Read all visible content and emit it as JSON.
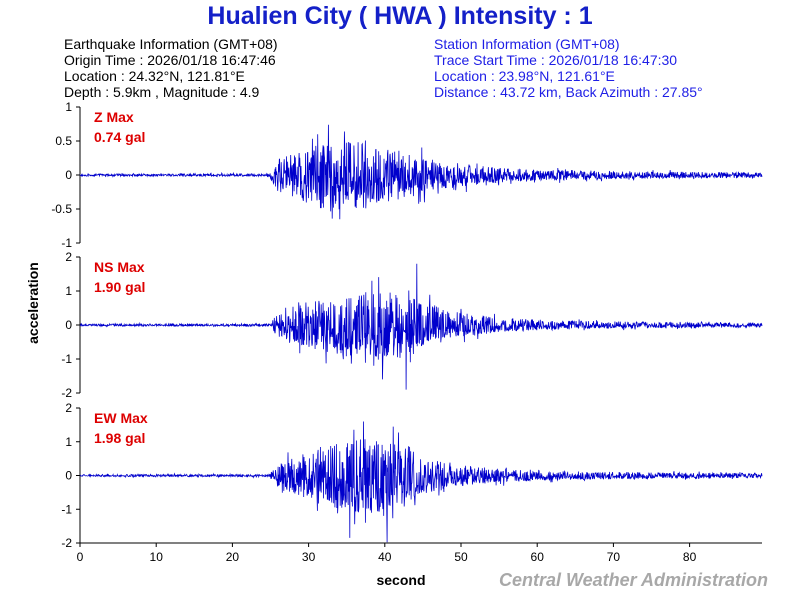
{
  "title": "Hualien City ( HWA ) Intensity : 1",
  "earthquake_info": {
    "heading": "Earthquake Information  (GMT+08)",
    "origin_time": "Origin Time : 2026/01/18 16:47:46",
    "location": "Location : 24.32°N, 121.81°E",
    "depth_magnitude": "Depth : 5.9km , Magnitude : 4.9"
  },
  "station_info": {
    "heading": "Station Information  (GMT+08)",
    "trace_start": "Trace Start Time : 2026/01/18 16:47:30",
    "location": "Location : 23.98°N, 121.61°E",
    "distance": "Distance : 43.72 km, Back Azimuth : 27.85°"
  },
  "credit": "Central Weather Administration",
  "colors": {
    "title": "#1420c8",
    "station_text": "#1e1ee6",
    "trace": "#0000cc",
    "max_label": "#dd0000",
    "credit": "#a8a8a8"
  },
  "chart_data": [
    {
      "type": "line",
      "component": "Z",
      "max_label": "Z Max",
      "max_value": "0.74 gal",
      "ylim": [
        -1,
        1
      ],
      "yticks": [
        -1,
        -0.5,
        0,
        0.5,
        1
      ],
      "envelope": {
        "x": [
          0,
          24.8,
          26,
          30,
          33,
          37,
          42,
          48,
          56,
          65,
          75,
          89.5
        ],
        "amp": [
          0.015,
          0.02,
          0.25,
          0.42,
          0.55,
          0.5,
          0.36,
          0.2,
          0.1,
          0.07,
          0.05,
          0.04
        ]
      },
      "peaks": [
        {
          "x": 32.6,
          "y": 0.74
        },
        {
          "x": 34.1,
          "y": -0.65
        },
        {
          "x": 31.2,
          "y": 0.6
        }
      ]
    },
    {
      "type": "line",
      "component": "NS",
      "max_label": "NS Max",
      "max_value": "1.90 gal",
      "ylim": [
        -2,
        2
      ],
      "yticks": [
        -2,
        -1,
        0,
        1,
        2
      ],
      "envelope": {
        "x": [
          0,
          24.8,
          26,
          30,
          35,
          40,
          44,
          48,
          55,
          65,
          75,
          89.5
        ],
        "amp": [
          0.03,
          0.04,
          0.35,
          0.7,
          0.9,
          1.05,
          0.85,
          0.45,
          0.2,
          0.12,
          0.09,
          0.07
        ]
      },
      "peaks": [
        {
          "x": 42.8,
          "y": -1.9
        },
        {
          "x": 44.2,
          "y": 1.8
        },
        {
          "x": 39.7,
          "y": -1.6
        },
        {
          "x": 38.3,
          "y": 1.3
        }
      ]
    },
    {
      "type": "line",
      "component": "EW",
      "max_label": "EW Max",
      "max_value": "1.98 gal",
      "ylim": [
        -2,
        2
      ],
      "yticks": [
        -2,
        -1,
        0,
        1,
        2
      ],
      "envelope": {
        "x": [
          0,
          24.8,
          26,
          30,
          34,
          38,
          42,
          46,
          52,
          62,
          75,
          89.5
        ],
        "amp": [
          0.03,
          0.04,
          0.35,
          0.75,
          1.0,
          1.15,
          0.9,
          0.5,
          0.25,
          0.14,
          0.09,
          0.07
        ]
      },
      "peaks": [
        {
          "x": 37.2,
          "y": 1.6
        },
        {
          "x": 40.3,
          "y": -1.98
        },
        {
          "x": 35.4,
          "y": -1.85
        },
        {
          "x": 41.1,
          "y": 1.45
        }
      ]
    }
  ],
  "x_axis": {
    "label": "second",
    "xlim": [
      0,
      89.5
    ],
    "ticks": [
      0,
      10,
      20,
      30,
      40,
      50,
      60,
      70,
      80
    ]
  },
  "y_axis": {
    "label": "acceleration"
  }
}
